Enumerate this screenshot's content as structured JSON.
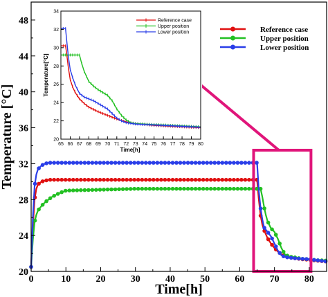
{
  "chart_data": [
    {
      "type": "line",
      "title": "",
      "xlabel": "Time[h]",
      "ylabel": "Temperature [°C]",
      "xlim": [
        0,
        85
      ],
      "ylim": [
        20,
        50
      ],
      "xticks": [
        0,
        10,
        20,
        30,
        40,
        50,
        60,
        70,
        80
      ],
      "yticks": [
        20,
        24,
        28,
        32,
        36,
        40,
        44,
        48
      ],
      "legend_position": "top-right",
      "grid": false,
      "highlight_box": {
        "x_range": [
          64,
          80.5
        ],
        "y_range": [
          20,
          33.5
        ],
        "color": "#e0157a"
      },
      "series": [
        {
          "name": "Reference case",
          "color": "#e01010",
          "x": [
            0,
            0.5,
            1,
            1.5,
            2,
            3,
            4,
            5,
            10,
            20,
            30,
            40,
            50,
            60,
            64,
            65,
            65.5,
            66,
            66.5,
            67,
            68,
            69,
            70,
            71,
            72,
            73,
            74,
            75,
            76,
            78,
            80,
            82,
            85
          ],
          "y": [
            20.5,
            25,
            28,
            29.2,
            29.7,
            30,
            30.1,
            30.2,
            30.2,
            30.2,
            30.2,
            30.2,
            30.2,
            30.2,
            30.2,
            30.2,
            28,
            26.2,
            25.2,
            24.6,
            23.7,
            23.1,
            22.6,
            22.2,
            21.9,
            21.7,
            21.6,
            21.5,
            21.45,
            21.35,
            21.3,
            21.2,
            21.1
          ]
        },
        {
          "name": "Upper position",
          "color": "#22c022",
          "x": [
            0,
            0.5,
            1,
            1.5,
            2,
            3,
            4,
            6,
            8,
            10,
            20,
            30,
            40,
            50,
            60,
            64,
            65,
            66,
            66.5,
            67,
            67.5,
            68,
            69,
            70,
            71,
            72,
            73,
            74,
            75,
            76,
            78,
            80,
            82,
            85
          ],
          "y": [
            20.5,
            23.5,
            25.5,
            26.3,
            26.8,
            27.3,
            27.7,
            28.3,
            28.7,
            29,
            29.1,
            29.2,
            29.2,
            29.2,
            29.2,
            29.2,
            29.2,
            29.2,
            28.3,
            27.2,
            26.3,
            25.6,
            24.8,
            24.4,
            23.6,
            22.6,
            21.9,
            21.7,
            21.6,
            21.55,
            21.4,
            21.35,
            21.25,
            21.2
          ]
        },
        {
          "name": "Lower position",
          "color": "#2a3ee8",
          "x": [
            0,
            0.5,
            1,
            1.5,
            2,
            3,
            4,
            5,
            10,
            20,
            30,
            40,
            50,
            60,
            64,
            65,
            65.5,
            66,
            66.5,
            67,
            68,
            69,
            70,
            71,
            72,
            73,
            74,
            75,
            76,
            78,
            80,
            82,
            85
          ],
          "y": [
            20.5,
            26,
            29.5,
            30.8,
            31.4,
            31.8,
            32,
            32.1,
            32.1,
            32.1,
            32.1,
            32.1,
            32.1,
            32.1,
            32.1,
            32.1,
            29,
            27,
            25.8,
            24.9,
            24.4,
            23.9,
            23.1,
            22.3,
            21.8,
            21.6,
            21.55,
            21.5,
            21.45,
            21.4,
            21.35,
            21.25,
            21.1
          ]
        }
      ]
    },
    {
      "type": "line",
      "title": "",
      "xlabel": "Time[h]",
      "ylabel": "Temperature[°C]",
      "xlim": [
        65,
        80
      ],
      "ylim": [
        20,
        34
      ],
      "xticks": [
        65,
        66,
        67,
        68,
        69,
        70,
        71,
        72,
        73,
        74,
        75,
        76,
        77,
        78,
        79,
        80
      ],
      "yticks": [
        20,
        22,
        24,
        26,
        28,
        30,
        32,
        34
      ],
      "legend_position": "top-right",
      "grid": false,
      "series": [
        {
          "name": "Reference case",
          "color": "#e01010",
          "x": [
            65,
            65.5,
            65.6,
            65.8,
            66,
            66.3,
            66.6,
            67,
            67.5,
            68,
            69,
            70,
            71,
            72,
            73,
            74,
            75,
            76,
            77,
            78,
            79,
            80
          ],
          "y": [
            30.2,
            30.2,
            29.5,
            27.8,
            26.5,
            25.6,
            25,
            24.4,
            23.9,
            23.5,
            23,
            22.6,
            22.2,
            21.9,
            21.7,
            21.6,
            21.5,
            21.45,
            21.4,
            21.35,
            21.3,
            21.25
          ]
        },
        {
          "name": "Upper position",
          "color": "#22c022",
          "x": [
            65,
            66,
            67,
            67.2,
            67.5,
            68,
            68.5,
            69,
            69.5,
            70,
            70.5,
            71,
            71.5,
            72,
            72.5,
            73,
            74,
            75,
            76,
            77,
            78,
            79,
            80
          ],
          "y": [
            29.2,
            29.2,
            29.2,
            28.4,
            27.4,
            26.3,
            25.8,
            25.4,
            25.1,
            24.8,
            24.2,
            23.3,
            22.6,
            22.1,
            21.8,
            21.7,
            21.65,
            21.6,
            21.55,
            21.5,
            21.45,
            21.4,
            21.35
          ]
        },
        {
          "name": "Lower position",
          "color": "#2a3ee8",
          "x": [
            65,
            65.5,
            65.6,
            65.8,
            66,
            66.3,
            66.6,
            67,
            67.5,
            68,
            68.5,
            69,
            69.5,
            70,
            70.5,
            71,
            71.5,
            72,
            73,
            74,
            75,
            76,
            77,
            78,
            79,
            80
          ],
          "y": [
            32.1,
            32.1,
            31,
            29,
            27.6,
            26.6,
            25.8,
            25,
            24.6,
            24.4,
            24.2,
            23.9,
            23.6,
            23.3,
            22.8,
            22.3,
            22,
            21.8,
            21.65,
            21.6,
            21.55,
            21.5,
            21.45,
            21.4,
            21.35,
            21.3
          ]
        }
      ]
    }
  ]
}
